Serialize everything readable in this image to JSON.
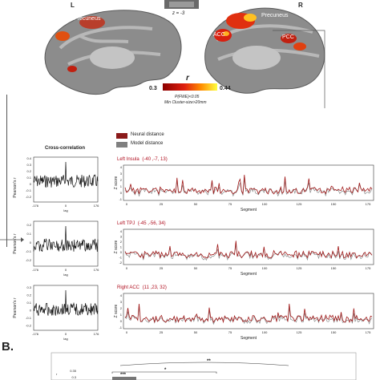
{
  "panel_a": {
    "hemisphere_left": "L",
    "hemisphere_right": "R",
    "slice_label": "z = -3",
    "labels_left": [
      "Precuneus"
    ],
    "labels_right": [
      "Precuneus",
      "ACC",
      "PCC"
    ],
    "colorbar": {
      "symbol": "r",
      "min": "0.3",
      "max": "0.44",
      "threshold_note": "P(FWE)<0.05",
      "cluster_note": "Min Cluster-size>20mm",
      "colors": [
        "#8b0000",
        "#e02010",
        "#ff8c00",
        "#ffff40"
      ]
    }
  },
  "legend": {
    "items": [
      {
        "label": "Neural distance",
        "color": "#8b1a1a"
      },
      {
        "label": "Model distance",
        "color": "#808080"
      }
    ]
  },
  "crosscorr_title": "Cross-correlation",
  "rows": [
    {
      "region": "Left Insula",
      "coords": "(-40 ,-7, 13)",
      "cc_ylabel": "Pearson's r",
      "cc_yticks": [
        "0.4",
        "0.3",
        "0.2",
        "0.1",
        "0",
        "-0.1",
        "-0.2"
      ],
      "cc_xticks": [
        "-176",
        "0",
        "176"
      ],
      "cc_xlabel": "lag",
      "ts_ylabel": "Z score",
      "ts_yticks": [
        "4",
        "3",
        "2",
        "1",
        "0",
        "-1"
      ],
      "ts_xticks": [
        "0",
        "25",
        "50",
        "75",
        "100",
        "125",
        "150",
        "175"
      ],
      "ts_xlabel": "Segment"
    },
    {
      "region": "Left TPJ",
      "coords": "(-45 ,-56, 34)",
      "cc_ylabel": "Pearson's r",
      "cc_yticks": [
        "0.2",
        "0.1",
        "0",
        "-0.1",
        "-0.2"
      ],
      "cc_xticks": [
        "-176",
        "0",
        "176"
      ],
      "cc_xlabel": "lag",
      "ts_ylabel": "Z score",
      "ts_yticks": [
        "4",
        "3",
        "2",
        "1",
        "0",
        "-1",
        "-2"
      ],
      "ts_xticks": [
        "0",
        "25",
        "50",
        "75",
        "100",
        "125",
        "150",
        "175"
      ],
      "ts_xlabel": "Segment"
    },
    {
      "region": "Right ACC",
      "coords": "(11 ,23, 32)",
      "cc_ylabel": "Pearson's r",
      "cc_yticks": [
        "0.3",
        "0.2",
        "0.1",
        "0",
        "-0.1",
        "-0.2"
      ],
      "cc_xticks": [
        "-176",
        "0",
        "176"
      ],
      "cc_xlabel": "lag",
      "ts_ylabel": "Z score",
      "ts_yticks": [
        "4",
        "3",
        "2",
        "1",
        "0",
        "-1"
      ],
      "ts_xticks": [
        "0",
        "25",
        "50",
        "75",
        "100",
        "125",
        "150",
        "175"
      ],
      "ts_xlabel": "Segment"
    }
  ],
  "panel_b": {
    "label": "B.",
    "ytick_top": "0.35",
    "ytick_next": "0.3",
    "axis_letter": "r",
    "sig_marks": [
      "***",
      "*",
      "**"
    ]
  }
}
